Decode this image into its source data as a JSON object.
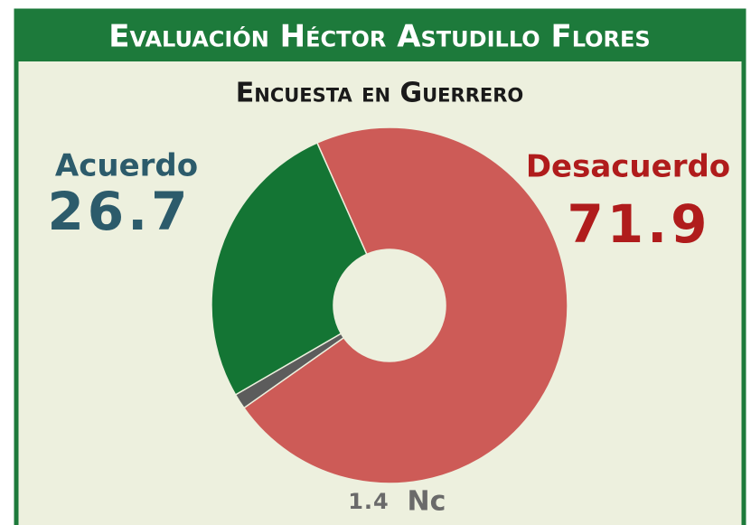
{
  "chart_data": {
    "type": "donut",
    "title": "Evaluación Héctor Astudillo Flores",
    "subtitle": "Encuesta en Guerrero",
    "categories": [
      "Desacuerdo",
      "Nc",
      "Acuerdo"
    ],
    "values": [
      71.9,
      1.4,
      26.7
    ],
    "colors": [
      "#cd5b57",
      "#5c5c5c",
      "#147534"
    ]
  }
}
